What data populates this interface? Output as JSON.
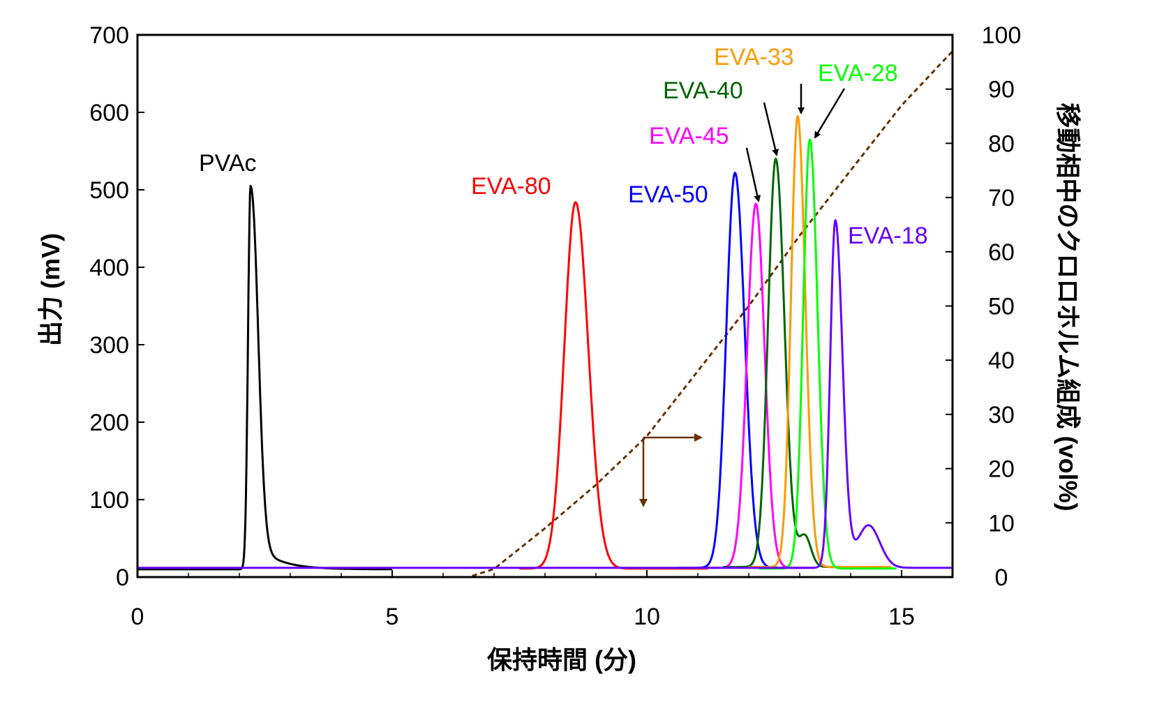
{
  "chart_data": {
    "type": "line",
    "title": "",
    "xlabel": "保持時間 (分)",
    "ylabel": "出力 (mV)",
    "y2label": "移動相中のクロロホルム組成 (vol%)",
    "xlim": [
      0,
      16
    ],
    "ylim": [
      0,
      700
    ],
    "y2lim": [
      0,
      100
    ],
    "xticks": [
      0,
      5,
      10,
      15
    ],
    "yticks": [
      0,
      100,
      200,
      300,
      400,
      500,
      600,
      700
    ],
    "y2ticks": [
      0,
      10,
      20,
      30,
      40,
      50,
      60,
      70,
      80,
      90,
      100
    ],
    "grid": false,
    "series": [
      {
        "name": "PVAc",
        "color": "#000000",
        "peak_time": 2.22,
        "peak_mV": 505,
        "width_left": 0.05,
        "width_right": 0.14,
        "tail_mV": 40,
        "tail_width": 0.45,
        "baseline_mV": 10,
        "range": [
          0,
          5
        ]
      },
      {
        "name": "EVA-80",
        "color": "#ff0000",
        "peak_time": 8.6,
        "peak_mV": 484,
        "width_left": 0.22,
        "width_right": 0.25,
        "baseline_mV": 11,
        "range": [
          7.5,
          11.2
        ]
      },
      {
        "name": "EVA-50",
        "color": "#0000ff",
        "peak_time": 11.73,
        "peak_mV": 522,
        "width_left": 0.17,
        "width_right": 0.19,
        "baseline_mV": 12,
        "range": [
          10.6,
          13.0
        ]
      },
      {
        "name": "EVA-45",
        "color": "#ff00ff",
        "peak_time": 12.14,
        "peak_mV": 482,
        "width_left": 0.17,
        "width_right": 0.17,
        "baseline_mV": 12,
        "range": [
          11.2,
          13.3
        ]
      },
      {
        "name": "EVA-40",
        "color": "#006400",
        "peak_time": 12.53,
        "peak_mV": 540,
        "width_left": 0.15,
        "width_right": 0.17,
        "shoulder_time": 13.1,
        "shoulder_mV": 40,
        "shoulder_width": 0.12,
        "baseline_mV": 13,
        "range": [
          11.5,
          14.6
        ]
      },
      {
        "name": "EVA-33",
        "color": "#ff9900",
        "peak_time": 12.96,
        "peak_mV": 595,
        "width_left": 0.13,
        "width_right": 0.15,
        "baseline_mV": 13,
        "range": [
          12.0,
          14.8
        ]
      },
      {
        "name": "EVA-28",
        "color": "#00ff00",
        "peak_time": 13.2,
        "peak_mV": 565,
        "width_left": 0.13,
        "width_right": 0.15,
        "baseline_mV": 11,
        "range": [
          12.2,
          14.9
        ]
      },
      {
        "name": "EVA-18",
        "color": "#6600ff",
        "peak_time": 13.7,
        "peak_mV": 460,
        "width_left": 0.1,
        "width_right": 0.14,
        "shoulder_time": 14.35,
        "shoulder_mV": 55,
        "shoulder_width": 0.22,
        "baseline_mV": 12,
        "range": [
          0,
          16
        ]
      }
    ],
    "gradient": {
      "name": "クロロホルム組成",
      "color": "#663300",
      "axis": "right",
      "style": "dashed",
      "x": [
        0,
        6.5,
        7.0,
        8.0,
        9.0,
        10.0,
        11.0,
        12.0,
        13.0,
        14.0,
        15.0,
        16.0
      ],
      "y": [
        0,
        0,
        1.5,
        9,
        17,
        26,
        38,
        50,
        63,
        75,
        87,
        97
      ]
    },
    "annotations": [
      "PVAc",
      "EVA-80",
      "EVA-50",
      "EVA-45",
      "EVA-40",
      "EVA-33",
      "EVA-28",
      "EVA-18"
    ]
  }
}
